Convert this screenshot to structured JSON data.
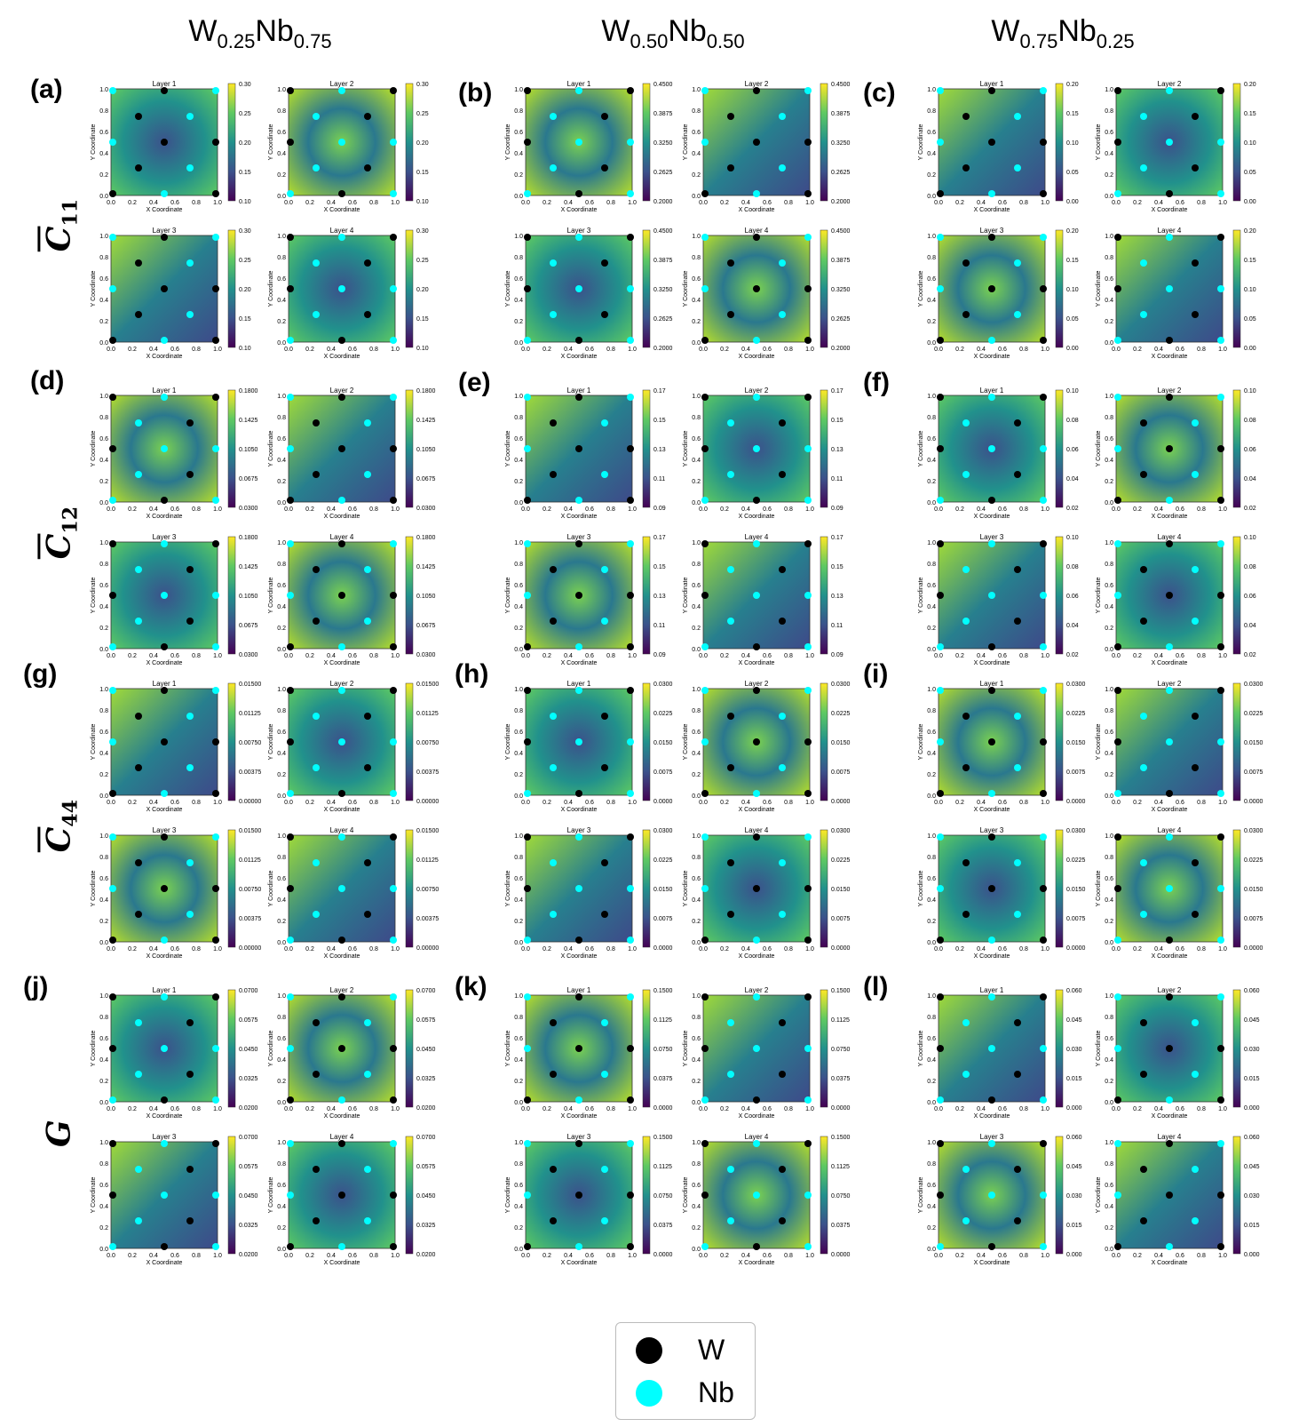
{
  "columns": [
    {
      "base": "W",
      "s1": "0.25",
      "el2": "Nb",
      "s2": "0.75"
    },
    {
      "base": "W",
      "s1": "0.50",
      "el2": "Nb",
      "s2": "0.50"
    },
    {
      "base": "W",
      "s1": "0.75",
      "el2": "Nb",
      "s2": "0.25"
    }
  ],
  "rows": [
    {
      "sym": "C",
      "sub": "11",
      "bar": true
    },
    {
      "sym": "C",
      "sub": "12",
      "bar": true
    },
    {
      "sym": "C",
      "sub": "44",
      "bar": true
    },
    {
      "sym": "G",
      "sub": "",
      "bar": false
    }
  ],
  "panel_labels": [
    "(a)",
    "(b)",
    "(c)",
    "(d)",
    "(e)",
    "(f)",
    "(g)",
    "(h)",
    "(i)",
    "(j)",
    "(k)",
    "(l)"
  ],
  "legend": {
    "items": [
      {
        "label": "W",
        "color": "#000000"
      },
      {
        "label": "Nb",
        "color": "#00ffff"
      }
    ]
  },
  "colors": {
    "W": "#000000",
    "Nb": "#00ffff",
    "colormap": "viridis"
  },
  "chart_data": {
    "type": "heatmap",
    "xlabel": "X Coordinate",
    "ylabel": "Y Coordinate",
    "xticks": [
      "0.0",
      "0.2",
      "0.4",
      "0.6",
      "0.8",
      "1.0"
    ],
    "yticks": [
      "0.0",
      "0.2",
      "0.4",
      "0.6",
      "0.8",
      "1.0"
    ],
    "layer_titles": [
      "Layer 1",
      "Layer 2",
      "Layer 3",
      "Layer 4"
    ],
    "colorbar_ticks": [
      [
        "0.30",
        "0.25",
        "0.20",
        "0.15",
        "0.10"
      ],
      [
        "0.4500",
        "0.3875",
        "0.3250",
        "0.2625",
        "0.2000"
      ],
      [
        "0.20",
        "0.15",
        "0.10",
        "0.05",
        "0.00"
      ],
      [
        "0.1800",
        "0.1425",
        "0.1050",
        "0.0675",
        "0.0300"
      ],
      [
        "0.17",
        "0.15",
        "0.13",
        "0.11",
        "0.09"
      ],
      [
        "0.10",
        "0.08",
        "0.06",
        "0.04",
        "0.02"
      ],
      [
        "0.01500",
        "0.01125",
        "0.00750",
        "0.00375",
        "0.00000"
      ],
      [
        "0.0300",
        "0.0225",
        "0.0150",
        "0.0075",
        "0.0000"
      ],
      [
        "0.0300",
        "0.0225",
        "0.0150",
        "0.0075",
        "0.0000"
      ],
      [
        "0.0700",
        "0.0575",
        "0.0450",
        "0.0325",
        "0.0200"
      ],
      [
        "0.1500",
        "0.1125",
        "0.0750",
        "0.0375",
        "0.0000"
      ],
      [
        "0.060",
        "0.045",
        "0.030",
        "0.015",
        "0.000"
      ]
    ]
  }
}
